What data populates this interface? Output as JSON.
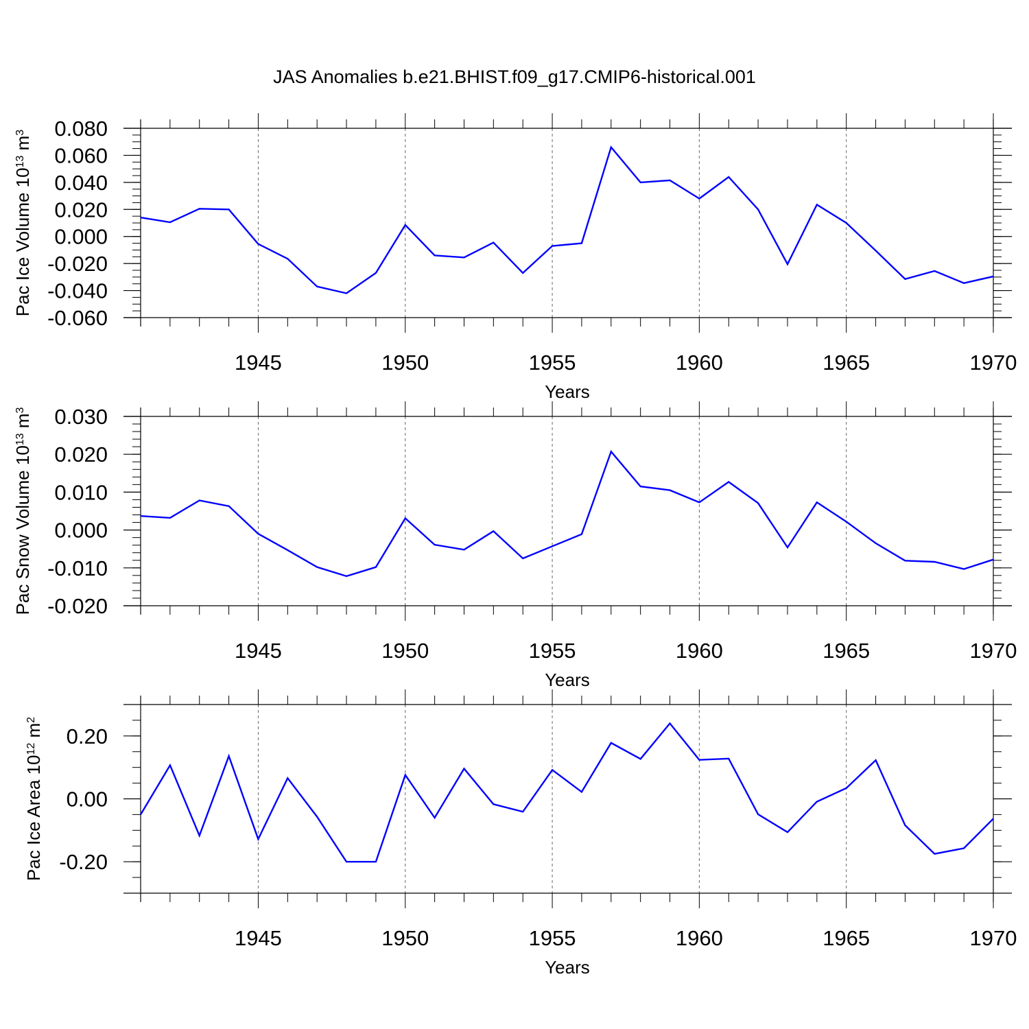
{
  "figure": {
    "title": "JAS Anomalies b.e21.BHIST.f09_g17.CMIP6-historical.001"
  },
  "chart_data": [
    {
      "type": "line",
      "ylabel": "Pac Ice Volume 10",
      "ylabel_exp": "13",
      "ylabel_unit": " m",
      "ylabel_unit_exp": "3",
      "xlabel": "Years",
      "xlim": [
        1941,
        1970
      ],
      "ylim": [
        -0.06,
        0.08
      ],
      "yticks": [
        -0.06,
        -0.04,
        -0.02,
        0.0,
        0.02,
        0.04,
        0.06,
        0.08
      ],
      "ytick_labels": [
        "-0.060",
        "-0.040",
        "-0.020",
        "0.000",
        "0.020",
        "0.040",
        "0.060",
        "0.080"
      ],
      "yminor_step": 0.005,
      "xticks": [
        1945,
        1950,
        1955,
        1960,
        1965,
        1970
      ],
      "xtick_labels": [
        "1945",
        "1950",
        "1955",
        "1960",
        "1965",
        "1970"
      ],
      "grid": "dashed vertical at major x ticks",
      "color": "#0000ff",
      "x": [
        1941,
        1942,
        1943,
        1944,
        1945,
        1946,
        1947,
        1948,
        1949,
        1950,
        1951,
        1952,
        1953,
        1954,
        1955,
        1956,
        1957,
        1958,
        1959,
        1960,
        1961,
        1962,
        1963,
        1964,
        1965,
        1966,
        1967,
        1968,
        1969,
        1970
      ],
      "y": [
        0.014,
        0.0105,
        0.0205,
        0.02,
        -0.0055,
        -0.0165,
        -0.037,
        -0.042,
        -0.027,
        0.0085,
        -0.014,
        -0.0155,
        -0.0045,
        -0.027,
        -0.007,
        -0.005,
        0.066,
        0.04,
        0.0415,
        0.028,
        0.044,
        0.02,
        -0.0205,
        0.0235,
        0.01,
        -0.0105,
        -0.0315,
        -0.0255,
        -0.0345,
        -0.0295
      ]
    },
    {
      "type": "line",
      "ylabel": "Pac Snow Volume 10",
      "ylabel_exp": "13",
      "ylabel_unit": " m",
      "ylabel_unit_exp": "3",
      "xlabel": "Years",
      "xlim": [
        1941,
        1970
      ],
      "ylim": [
        -0.02,
        0.03
      ],
      "yticks": [
        -0.02,
        -0.01,
        0.0,
        0.01,
        0.02,
        0.03
      ],
      "ytick_labels": [
        "-0.020",
        "-0.010",
        "0.000",
        "0.010",
        "0.020",
        "0.030"
      ],
      "yminor_step": 0.002,
      "xticks": [
        1945,
        1950,
        1955,
        1960,
        1965,
        1970
      ],
      "xtick_labels": [
        "1945",
        "1950",
        "1955",
        "1960",
        "1965",
        "1970"
      ],
      "grid": "dashed vertical at major x ticks",
      "color": "#0000ff",
      "x": [
        1941,
        1942,
        1943,
        1944,
        1945,
        1946,
        1947,
        1948,
        1949,
        1950,
        1951,
        1952,
        1953,
        1954,
        1955,
        1956,
        1957,
        1958,
        1959,
        1960,
        1961,
        1962,
        1963,
        1964,
        1965,
        1966,
        1967,
        1968,
        1969,
        1970
      ],
      "y": [
        0.0037,
        0.0032,
        0.0078,
        0.0063,
        -0.001,
        -0.0053,
        -0.0098,
        -0.0122,
        -0.0098,
        0.0031,
        -0.0039,
        -0.0052,
        -0.0003,
        -0.0075,
        -0.0043,
        -0.0011,
        0.0207,
        0.0115,
        0.0105,
        0.0073,
        0.0127,
        0.0071,
        -0.0046,
        0.0073,
        0.0022,
        -0.0035,
        -0.0081,
        -0.0084,
        -0.0103,
        -0.0078
      ]
    },
    {
      "type": "line",
      "ylabel": "Pac Ice Area 10",
      "ylabel_exp": "12",
      "ylabel_unit": " m",
      "ylabel_unit_exp": "2",
      "xlabel": "Years",
      "xlim": [
        1941,
        1970
      ],
      "ylim": [
        -0.3,
        0.3
      ],
      "yticks": [
        -0.2,
        0.0,
        0.2
      ],
      "ytick_labels": [
        "-0.20",
        "0.00",
        "0.20"
      ],
      "yminor_step": 0.05,
      "xticks": [
        1945,
        1950,
        1955,
        1960,
        1965,
        1970
      ],
      "xtick_labels": [
        "1945",
        "1950",
        "1955",
        "1960",
        "1965",
        "1970"
      ],
      "grid": "dashed vertical at major x ticks",
      "color": "#0000ff",
      "x": [
        1941,
        1942,
        1943,
        1944,
        1945,
        1946,
        1947,
        1948,
        1949,
        1950,
        1951,
        1952,
        1953,
        1954,
        1955,
        1956,
        1957,
        1958,
        1959,
        1960,
        1961,
        1962,
        1963,
        1964,
        1965,
        1966,
        1967,
        1968,
        1969,
        1970
      ],
      "y": [
        -0.05,
        0.107,
        -0.117,
        0.136,
        -0.128,
        0.066,
        -0.057,
        -0.2,
        -0.2,
        0.076,
        -0.06,
        0.096,
        -0.017,
        -0.041,
        0.092,
        0.022,
        0.178,
        0.127,
        0.24,
        0.124,
        0.128,
        -0.049,
        -0.106,
        -0.009,
        0.034,
        0.123,
        -0.084,
        -0.175,
        -0.157,
        -0.063
      ]
    }
  ]
}
